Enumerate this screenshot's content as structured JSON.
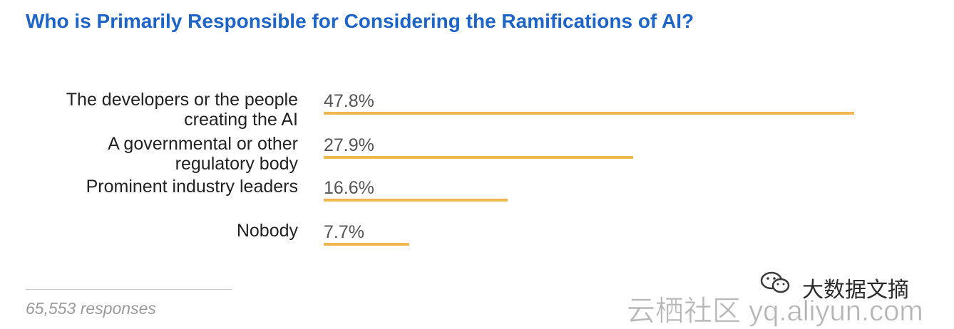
{
  "title": "Who is Primarily Responsible for Considering the Ramifications of AI?",
  "footer": {
    "responses": "65,553 responses"
  },
  "watermark": {
    "line1": "大数据文摘",
    "line2": "云栖社区 yq.aliyun.com",
    "icon": "wechat-icon"
  },
  "colors": {
    "title": "#1e63c6",
    "bar": "#f0b64f",
    "label": "#222222",
    "value": "#555555"
  },
  "chart_data": {
    "type": "bar",
    "orientation": "horizontal",
    "categories": [
      [
        "The developers or the people",
        "creating the AI"
      ],
      [
        "A governmental or other",
        "regulatory body"
      ],
      [
        "Prominent industry leaders"
      ],
      [
        "Nobody"
      ]
    ],
    "values": [
      47.8,
      27.9,
      16.6,
      7.7
    ],
    "value_labels": [
      "47.8%",
      "27.9%",
      "16.6%",
      "7.7%"
    ],
    "unit": "%",
    "grid": false,
    "legend": "none"
  }
}
